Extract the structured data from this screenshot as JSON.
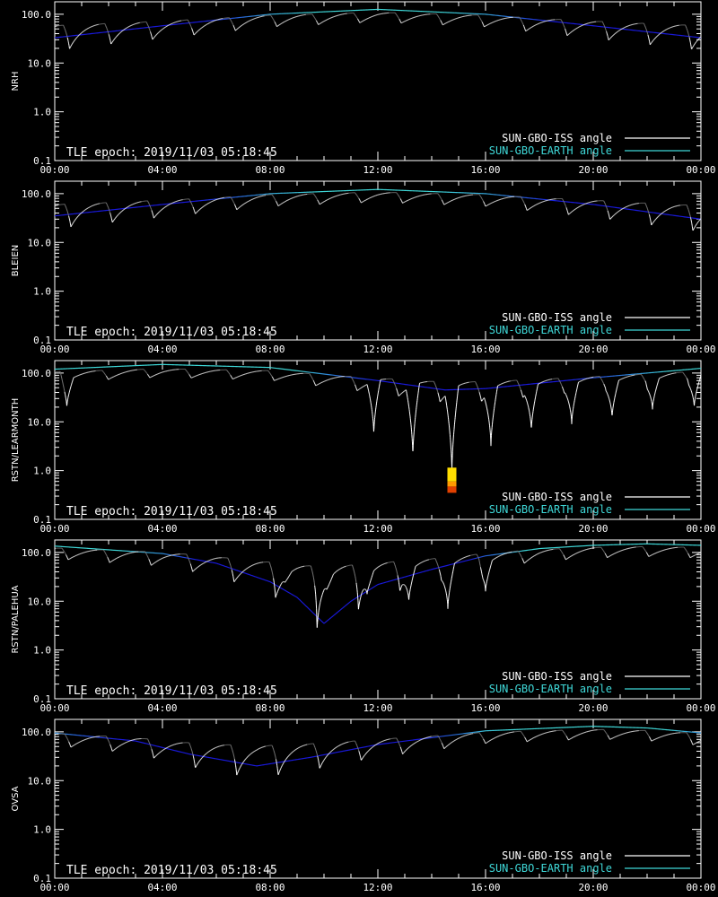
{
  "epoch_label": "TLE epoch: 2019/11/03 05:18:45",
  "legend": [
    {
      "label": "SUN-GBO-ISS angle",
      "color": "#ffffff"
    },
    {
      "label": "SUN-GBO-EARTH angle",
      "color": "#3fd8d8"
    }
  ],
  "colors": {
    "background": "#000000",
    "axis": "#ffffff",
    "earth_low": "#1a1adf",
    "earth_high": "#3fd8d8",
    "iss": "#ffffff",
    "iss_dim": "#7a7a7a"
  },
  "chart_data": [
    {
      "type": "line",
      "station": "NRH",
      "ylabel": "NRH",
      "yscale": "log",
      "ylim": [
        0.1,
        180
      ],
      "xlim_hours": [
        0,
        24
      ],
      "x_ticks": [
        "00:00",
        "04:00",
        "08:00",
        "12:00",
        "16:00",
        "20:00",
        "00:00"
      ],
      "y_ticks": [
        "0.1",
        "1.0",
        "10.0",
        "100.0"
      ],
      "series": [
        {
          "name": "SUN-GBO-ISS angle",
          "period_hours": 1.54,
          "phase_hours": 0.55,
          "sweep": 45,
          "notch_depth": 0
        },
        {
          "name": "SUN-GBO-EARTH angle",
          "points": [
            [
              0,
              33
            ],
            [
              4,
              58
            ],
            [
              8,
              100
            ],
            [
              12,
              126
            ],
            [
              16,
              100
            ],
            [
              20,
              58
            ],
            [
              24,
              33
            ]
          ]
        }
      ]
    },
    {
      "type": "line",
      "station": "BLEIEN",
      "ylabel": "BLEIEN",
      "yscale": "log",
      "ylim": [
        0.1,
        180
      ],
      "xlim_hours": [
        0,
        24
      ],
      "x_ticks": [
        "00:00",
        "04:00",
        "08:00",
        "12:00",
        "16:00",
        "20:00",
        "00:00"
      ],
      "y_ticks": [
        "0.1",
        "1.0",
        "10.0",
        "100.0"
      ],
      "series": [
        {
          "name": "SUN-GBO-ISS angle",
          "period_hours": 1.54,
          "phase_hours": 0.6,
          "sweep": 45,
          "notch_depth": 0
        },
        {
          "name": "SUN-GBO-EARTH angle",
          "points": [
            [
              0,
              35
            ],
            [
              4,
              60
            ],
            [
              8,
              100
            ],
            [
              12,
              122
            ],
            [
              16,
              100
            ],
            [
              20,
              60
            ],
            [
              24,
              30
            ]
          ]
        }
      ]
    },
    {
      "type": "line",
      "station": "RSTN/LEARMONTH",
      "ylabel": "RSTN/LEARMONTH",
      "yscale": "log",
      "ylim": [
        0.1,
        180
      ],
      "xlim_hours": [
        0,
        24
      ],
      "x_ticks": [
        "00:00",
        "04:00",
        "08:00",
        "12:00",
        "16:00",
        "20:00",
        "00:00"
      ],
      "y_ticks": [
        "0.1",
        "1.0",
        "10.0",
        "100.0"
      ],
      "series": [
        {
          "name": "SUN-GBO-ISS angle",
          "period_hours": 1.54,
          "phase_hours": 0.45,
          "sweep": 45,
          "notch_depth": 1
        },
        {
          "name": "SUN-GBO-EARTH angle",
          "points": [
            [
              0,
              120
            ],
            [
              4,
              150
            ],
            [
              8,
              130
            ],
            [
              12,
              70
            ],
            [
              14.5,
              45
            ],
            [
              16,
              48
            ],
            [
              20,
              80
            ],
            [
              24,
              125
            ]
          ]
        }
      ],
      "annotations": [
        {
          "type": "closest-approach-marker",
          "hour": 14.75,
          "value_range": [
            0.35,
            1.15
          ]
        }
      ],
      "notch_minima": [
        {
          "hour": 0.45,
          "value": 20
        },
        {
          "hour": 11.85,
          "value": 5.5
        },
        {
          "hour": 13.3,
          "value": 1.9
        },
        {
          "hour": 14.75,
          "value": 0.9
        },
        {
          "hour": 16.2,
          "value": 3.2
        },
        {
          "hour": 17.7,
          "value": 6.5
        },
        {
          "hour": 19.2,
          "value": 9
        },
        {
          "hour": 20.7,
          "value": 12
        },
        {
          "hour": 22.2,
          "value": 18
        },
        {
          "hour": 23.75,
          "value": 20
        }
      ]
    },
    {
      "type": "line",
      "station": "RSTN/PALEHUA",
      "ylabel": "RSTN/PALEHUA",
      "yscale": "log",
      "ylim": [
        0.1,
        180
      ],
      "xlim_hours": [
        0,
        24
      ],
      "x_ticks": [
        "00:00",
        "04:00",
        "08:00",
        "12:00",
        "16:00",
        "20:00",
        "00:00"
      ],
      "y_ticks": [
        "0.1",
        "1.0",
        "10.0",
        "100.0"
      ],
      "series": [
        {
          "name": "SUN-GBO-ISS angle",
          "period_hours": 1.54,
          "phase_hours": 0.5,
          "sweep": 55,
          "notch_depth": 0.4
        },
        {
          "name": "SUN-GBO-EARTH angle",
          "points": [
            [
              0,
              135
            ],
            [
              4,
              95
            ],
            [
              6,
              60
            ],
            [
              8,
              25
            ],
            [
              9,
              12
            ],
            [
              10,
              3.5
            ],
            [
              11,
              10
            ],
            [
              12,
              22
            ],
            [
              14,
              45
            ],
            [
              16,
              85
            ],
            [
              18,
              120
            ],
            [
              20,
              140
            ],
            [
              22,
              150
            ],
            [
              24,
              140
            ]
          ]
        }
      ],
      "notch_minima": [
        {
          "hour": 8.55,
          "value": 24
        },
        {
          "hour": 10.1,
          "value": 17
        },
        {
          "hour": 11.6,
          "value": 14
        },
        {
          "hour": 13.15,
          "value": 10
        },
        {
          "hour": 14.6,
          "value": 7
        },
        {
          "hour": 16.0,
          "value": 16
        }
      ]
    },
    {
      "type": "line",
      "station": "OVSA",
      "ylabel": "OVSA",
      "yscale": "log",
      "ylim": [
        0.1,
        180
      ],
      "xlim_hours": [
        0,
        24
      ],
      "x_ticks": [
        "00:00",
        "04:00",
        "08:00",
        "12:00",
        "16:00",
        "20:00",
        "00:00"
      ],
      "y_ticks": [
        "0.1",
        "1.0",
        "10.0",
        "100.0"
      ],
      "series": [
        {
          "name": "SUN-GBO-ISS angle",
          "period_hours": 1.54,
          "phase_hours": 0.6,
          "sweep": 45,
          "notch_depth": 0
        },
        {
          "name": "SUN-GBO-EARTH angle",
          "points": [
            [
              0,
              95
            ],
            [
              3,
              65
            ],
            [
              5,
              35
            ],
            [
              7.5,
              20
            ],
            [
              9.5,
              30
            ],
            [
              12,
              55
            ],
            [
              16,
              105
            ],
            [
              20,
              130
            ],
            [
              22,
              120
            ],
            [
              24,
              95
            ]
          ]
        }
      ]
    }
  ]
}
